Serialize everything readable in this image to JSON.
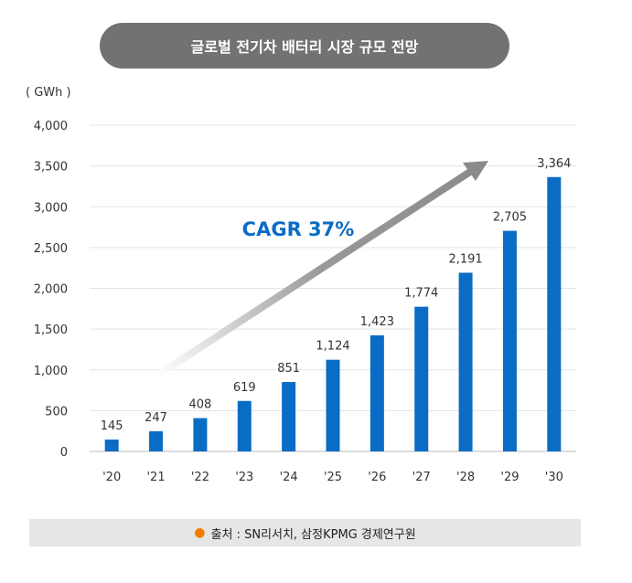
{
  "title": "글로벌 전기차 배터리 시장 규모 전망",
  "source": "출처 : SN리서치, 삼정KPMG 경제연구원",
  "colors": {
    "bar": "#0a6cc4",
    "annotation": "#0a6cc4",
    "pill": "#727272",
    "bullet": "#f07d00"
  },
  "chart_data": {
    "type": "bar",
    "unit_label": "( GWh )",
    "categories": [
      "'20",
      "'21",
      "'22",
      "'23",
      "'24",
      "'25",
      "'26",
      "'27",
      "'28",
      "'29",
      "'30"
    ],
    "values": [
      145,
      247,
      408,
      619,
      851,
      1124,
      1423,
      1774,
      2191,
      2705,
      3364
    ],
    "value_labels": [
      "145",
      "247",
      "408",
      "619",
      "851",
      "1,124",
      "1,423",
      "1,774",
      "2,191",
      "2,705",
      "3,364"
    ],
    "ylim": [
      0,
      4000
    ],
    "yticks": [
      0,
      500,
      1000,
      1500,
      2000,
      2500,
      3000,
      3500,
      4000
    ],
    "ytick_labels": [
      "0",
      "500",
      "1,000",
      "1,500",
      "2,000",
      "2,500",
      "3,000",
      "3,500",
      "4,000"
    ],
    "grid": true,
    "annotation": "CAGR 37%"
  }
}
